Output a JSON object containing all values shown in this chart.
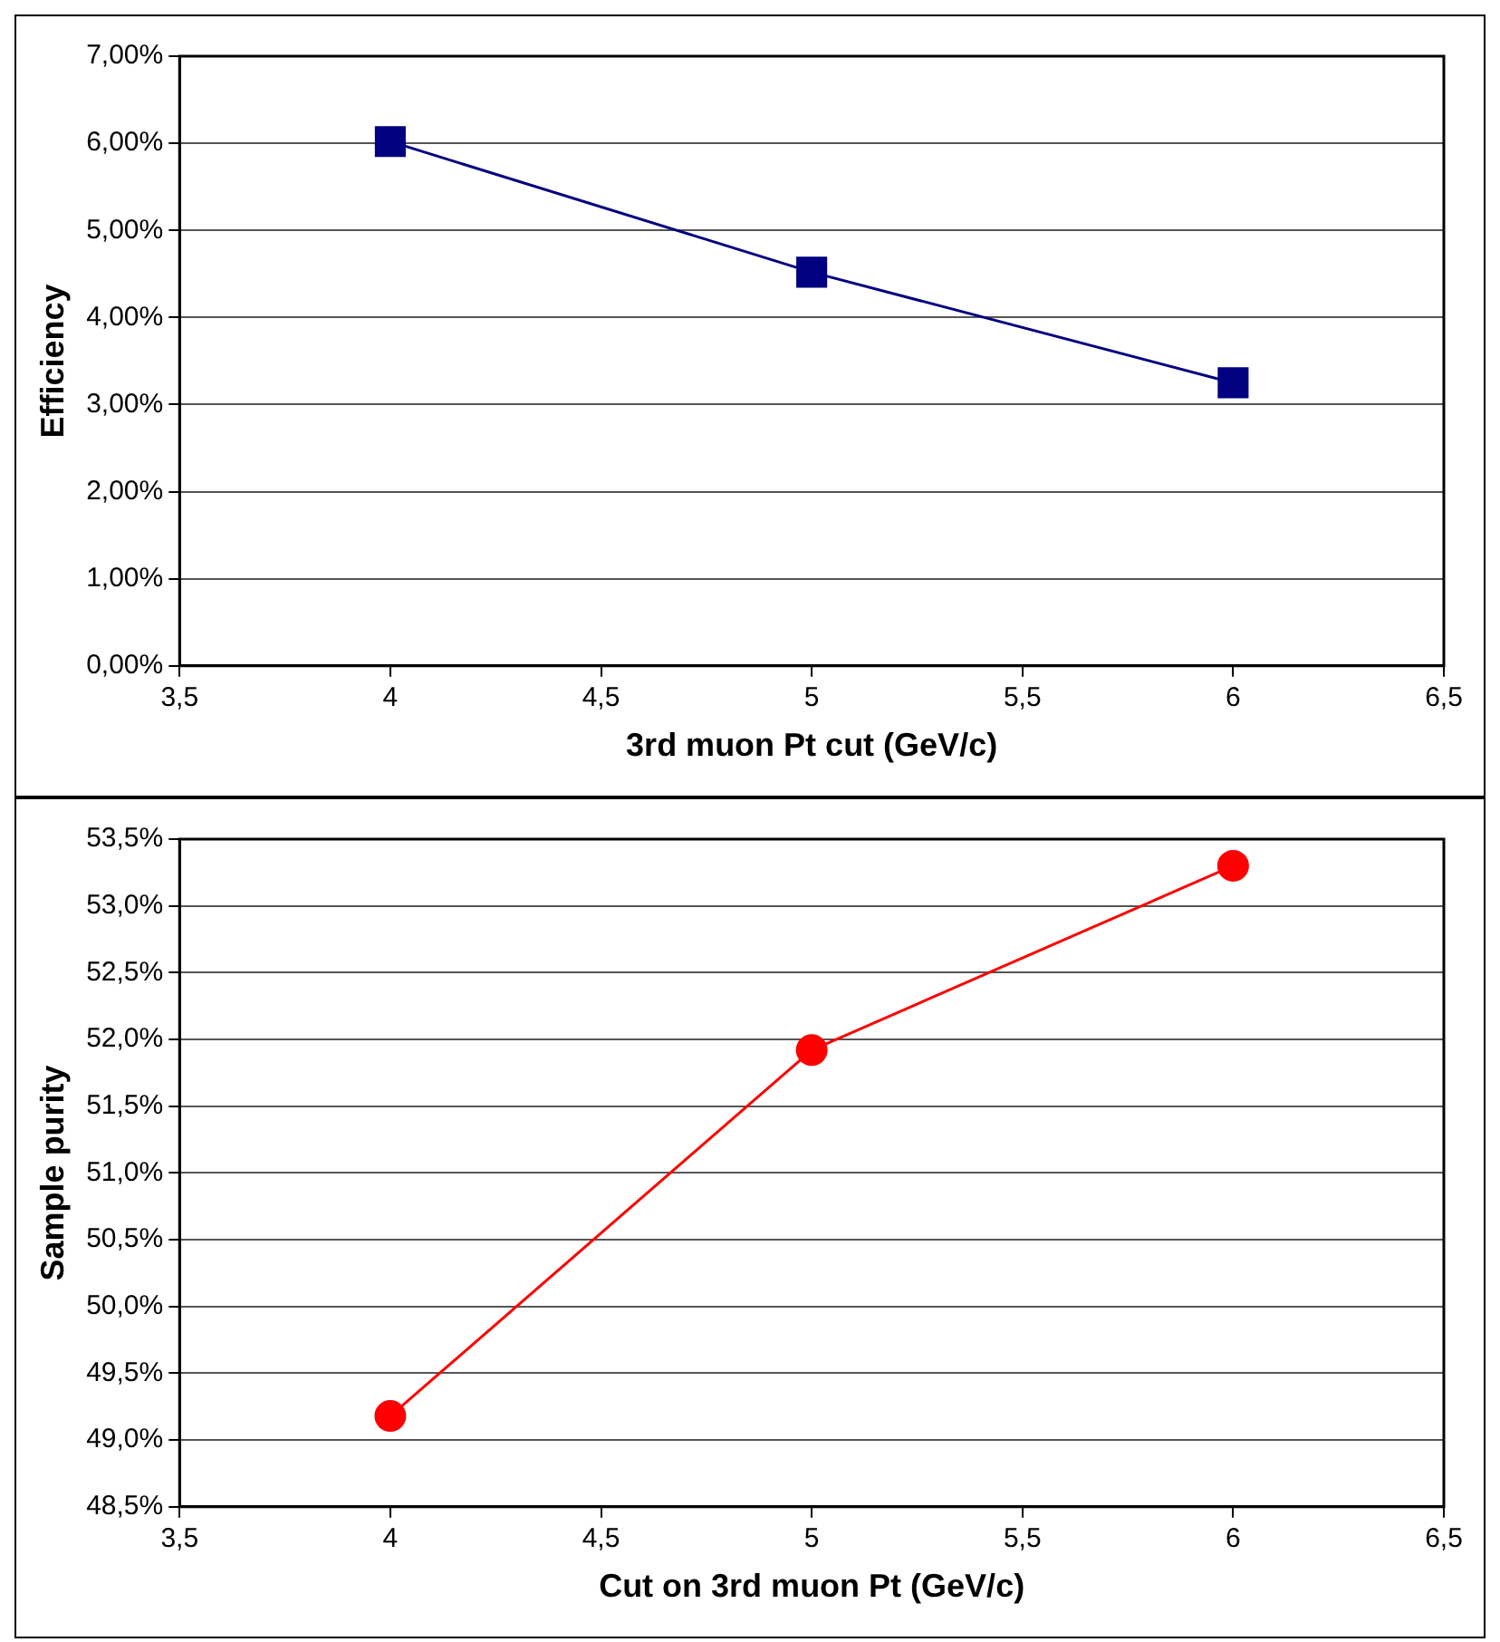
{
  "chart_data": [
    {
      "type": "line",
      "xlabel": "3rd muon Pt cut (GeV/c)",
      "ylabel": "Efficiency",
      "x": [
        4,
        5,
        6
      ],
      "series": [
        {
          "color": "#000080",
          "values": [
            6.02,
            4.52,
            3.25
          ]
        }
      ],
      "marker": "square",
      "grid": "y",
      "legend": false,
      "xlim": [
        3.5,
        6.5
      ],
      "xticks": [
        {
          "value": 3.5,
          "label": "3,5"
        },
        4,
        {
          "value": 4.5,
          "label": "4,5"
        },
        5,
        {
          "value": 5.5,
          "label": "5,5"
        },
        6,
        {
          "value": 6.5,
          "label": "6,5"
        }
      ],
      "ylim": [
        0,
        7
      ],
      "yticks": [
        {
          "value": 0,
          "label": "0,00%"
        },
        {
          "value": 1,
          "label": "1,00%"
        },
        {
          "value": 2,
          "label": "2,00%"
        },
        {
          "value": 3,
          "label": "3,00%"
        },
        {
          "value": 4,
          "label": "4,00%"
        },
        {
          "value": 5,
          "label": "5,00%"
        },
        {
          "value": 6,
          "label": "6,00%"
        },
        {
          "value": 7,
          "label": "7,00%"
        }
      ]
    },
    {
      "type": "line",
      "xlabel": "Cut on 3rd muon Pt (GeV/c)",
      "ylabel": "Sample purity",
      "x": [
        4,
        5,
        6
      ],
      "series": [
        {
          "color": "#ff0000",
          "values": [
            49.18,
            51.92,
            53.3
          ]
        }
      ],
      "marker": "circle",
      "grid": "y",
      "legend": false,
      "xlim": [
        3.5,
        6.5
      ],
      "xticks": [
        {
          "value": 3.5,
          "label": "3,5"
        },
        4,
        {
          "value": 4.5,
          "label": "4,5"
        },
        5,
        {
          "value": 5.5,
          "label": "5,5"
        },
        6,
        {
          "value": 6.5,
          "label": "6,5"
        }
      ],
      "ylim": [
        48.5,
        53.5
      ],
      "yticks": [
        {
          "value": 48.5,
          "label": "48,5%"
        },
        {
          "value": 49,
          "label": "49,0%"
        },
        {
          "value": 49.5,
          "label": "49,5%"
        },
        {
          "value": 50,
          "label": "50,0%"
        },
        {
          "value": 50.5,
          "label": "50,5%"
        },
        {
          "value": 51,
          "label": "51,0%"
        },
        {
          "value": 51.5,
          "label": "51,5%"
        },
        {
          "value": 52,
          "label": "52,0%"
        },
        {
          "value": 52.5,
          "label": "52,5%"
        },
        {
          "value": 53,
          "label": "53,0%"
        },
        {
          "value": 53.5,
          "label": "53,5%"
        }
      ]
    }
  ]
}
